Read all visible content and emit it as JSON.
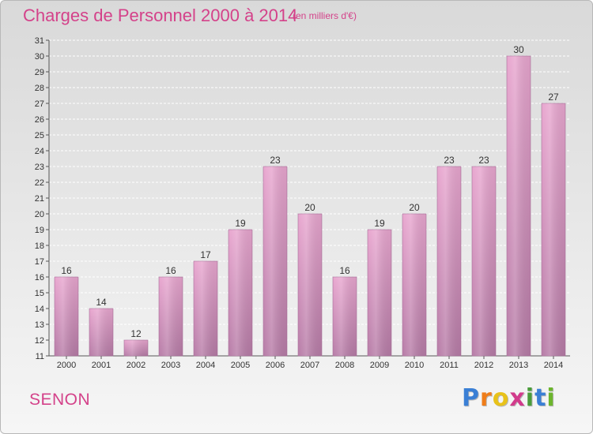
{
  "title": "Charges de Personnel 2000 à 2014",
  "subtitle": "(en milliers d'€)",
  "commune": "SENON",
  "logo": {
    "letters": [
      "P",
      "r",
      "o",
      "x",
      "i",
      "t",
      "i"
    ],
    "colors": [
      "#3a7fd5",
      "#ef7d1a",
      "#e8c21a",
      "#d23b8c",
      "#4a9c3a",
      "#3a7fd5",
      "#6cb52d"
    ]
  },
  "colors": {
    "bar_top": "#e8a6cf",
    "bar_bottom": "#b77ca7",
    "bar_edge": "#a8709a",
    "title": "#d4428a"
  },
  "chart_data": {
    "type": "bar",
    "title": "Charges de Personnel 2000 à 2014",
    "subtitle": "(en milliers d'€)",
    "categories": [
      "2000",
      "2001",
      "2002",
      "2003",
      "2004",
      "2005",
      "2006",
      "2007",
      "2008",
      "2009",
      "2010",
      "2011",
      "2012",
      "2013",
      "2014"
    ],
    "values": [
      16,
      14,
      12,
      16,
      17,
      19,
      23,
      20,
      16,
      19,
      20,
      23,
      23,
      30,
      27
    ],
    "ylim": [
      11,
      31
    ],
    "yticks": [
      11,
      12,
      13,
      14,
      15,
      16,
      17,
      18,
      19,
      20,
      21,
      22,
      23,
      24,
      25,
      26,
      27,
      28,
      29,
      30,
      31
    ],
    "grid": true,
    "data_labels": true
  }
}
